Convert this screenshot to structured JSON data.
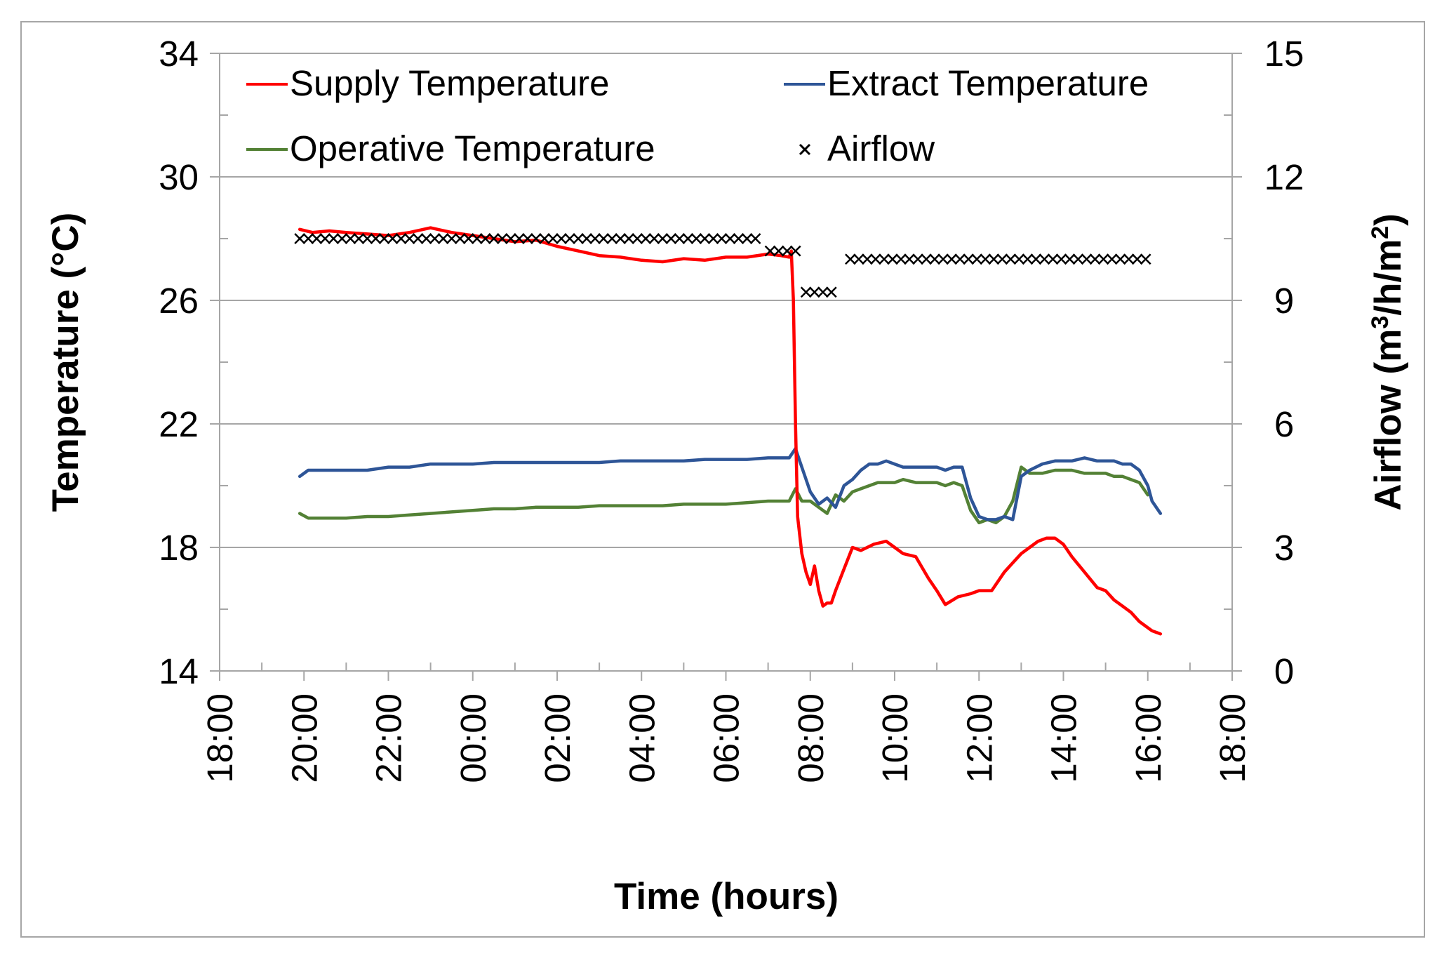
{
  "chart_data": {
    "type": "line",
    "title": "",
    "xlabel": "Time (hours)",
    "ylabel": "Temperature (°C)",
    "y2label_base": "Airflow (m",
    "y2label_sup1": "3",
    "y2label_mid": "/h/m",
    "y2label_sup2": "2",
    "y2label_end": ")",
    "xlim_hours": [
      0,
      24
    ],
    "ylim": [
      14,
      34
    ],
    "y2lim": [
      0,
      15
    ],
    "x_tick_labels": [
      "18:00",
      "20:00",
      "22:00",
      "00:00",
      "02:00",
      "04:00",
      "06:00",
      "08:00",
      "10:00",
      "12:00",
      "14:00",
      "16:00",
      "18:00"
    ],
    "y_ticks": [
      14,
      18,
      22,
      26,
      30,
      34
    ],
    "y2_ticks": [
      0,
      3,
      6,
      9,
      12,
      15
    ],
    "legend_placement": "top",
    "colors": {
      "supply": "#ff0000",
      "extract": "#2e5597",
      "operative": "#538135",
      "airflow": "#000000",
      "grid": "#a6a6a6"
    },
    "series": [
      {
        "name": "Supply Temperature",
        "axis": "left",
        "style": "line",
        "x": [
          1.9,
          2.2,
          2.6,
          3.0,
          3.5,
          4.0,
          4.5,
          5.0,
          5.5,
          6.0,
          6.5,
          7.0,
          7.5,
          8.0,
          8.5,
          9.0,
          9.5,
          10.0,
          10.5,
          11.0,
          11.5,
          12.0,
          12.5,
          13.0,
          13.3,
          13.5,
          13.55,
          13.6,
          13.65,
          13.7,
          13.8,
          13.9,
          14.0,
          14.1,
          14.2,
          14.3,
          14.4,
          14.5,
          14.6,
          14.8,
          15.0,
          15.2,
          15.5,
          15.8,
          16.0,
          16.2,
          16.5,
          16.8,
          17.0,
          17.2,
          17.5,
          17.8,
          18.0,
          18.3,
          18.6,
          18.8,
          19.0,
          19.2,
          19.4,
          19.6,
          19.8,
          20.0,
          20.2,
          20.5,
          20.8,
          21.0,
          21.2,
          21.4,
          21.6,
          21.8,
          22.0,
          22.1,
          22.2,
          22.3
        ],
        "values": [
          28.3,
          28.2,
          28.25,
          28.2,
          28.15,
          28.1,
          28.2,
          28.35,
          28.2,
          28.1,
          28.0,
          27.9,
          27.95,
          27.75,
          27.6,
          27.45,
          27.4,
          27.3,
          27.25,
          27.35,
          27.3,
          27.4,
          27.4,
          27.5,
          27.45,
          27.4,
          27.6,
          26.0,
          22.0,
          19.0,
          17.8,
          17.2,
          16.8,
          17.4,
          16.6,
          16.1,
          16.2,
          16.2,
          16.6,
          17.3,
          18.0,
          17.9,
          18.1,
          18.2,
          18.0,
          17.8,
          17.7,
          17.0,
          16.6,
          16.15,
          16.4,
          16.5,
          16.6,
          16.6,
          17.2,
          17.5,
          17.8,
          18.0,
          18.2,
          18.3,
          18.3,
          18.1,
          17.7,
          17.2,
          16.7,
          16.6,
          16.3,
          16.1,
          15.9,
          15.6,
          15.4,
          15.3,
          15.25,
          15.2
        ]
      },
      {
        "name": "Extract Temperature",
        "axis": "left",
        "style": "line",
        "x": [
          1.9,
          2.1,
          2.5,
          3.0,
          3.5,
          4.0,
          4.5,
          5.0,
          5.5,
          6.0,
          6.5,
          7.0,
          7.5,
          8.0,
          8.5,
          9.0,
          9.5,
          10.0,
          10.5,
          11.0,
          11.5,
          12.0,
          12.5,
          13.0,
          13.3,
          13.5,
          13.65,
          13.8,
          14.0,
          14.2,
          14.4,
          14.6,
          14.8,
          15.0,
          15.2,
          15.4,
          15.6,
          15.8,
          16.0,
          16.2,
          16.5,
          16.8,
          17.0,
          17.2,
          17.4,
          17.6,
          17.8,
          18.0,
          18.2,
          18.4,
          18.6,
          18.8,
          19.0,
          19.2,
          19.5,
          19.8,
          20.0,
          20.2,
          20.5,
          20.8,
          21.0,
          21.2,
          21.4,
          21.6,
          21.8,
          22.0,
          22.1,
          22.3
        ],
        "values": [
          20.3,
          20.5,
          20.5,
          20.5,
          20.5,
          20.6,
          20.6,
          20.7,
          20.7,
          20.7,
          20.75,
          20.75,
          20.75,
          20.75,
          20.75,
          20.75,
          20.8,
          20.8,
          20.8,
          20.8,
          20.85,
          20.85,
          20.85,
          20.9,
          20.9,
          20.9,
          21.2,
          20.6,
          19.8,
          19.4,
          19.6,
          19.3,
          20.0,
          20.2,
          20.5,
          20.7,
          20.7,
          20.8,
          20.7,
          20.6,
          20.6,
          20.6,
          20.6,
          20.5,
          20.6,
          20.6,
          19.6,
          19.0,
          18.9,
          18.9,
          19.0,
          18.9,
          20.3,
          20.5,
          20.7,
          20.8,
          20.8,
          20.8,
          20.9,
          20.8,
          20.8,
          20.8,
          20.7,
          20.7,
          20.5,
          20.0,
          19.5,
          19.1
        ]
      },
      {
        "name": "Operative Temperature",
        "axis": "left",
        "style": "line",
        "x": [
          1.9,
          2.1,
          2.5,
          3.0,
          3.5,
          4.0,
          4.5,
          5.0,
          5.5,
          6.0,
          6.5,
          7.0,
          7.5,
          8.0,
          8.5,
          9.0,
          9.5,
          10.0,
          10.5,
          11.0,
          11.5,
          12.0,
          12.5,
          13.0,
          13.3,
          13.5,
          13.65,
          13.8,
          14.0,
          14.2,
          14.4,
          14.6,
          14.8,
          15.0,
          15.2,
          15.4,
          15.6,
          15.8,
          16.0,
          16.2,
          16.5,
          16.8,
          17.0,
          17.2,
          17.4,
          17.6,
          17.8,
          18.0,
          18.2,
          18.4,
          18.6,
          18.8,
          19.0,
          19.2,
          19.5,
          19.8,
          20.0,
          20.2,
          20.5,
          20.8,
          21.0,
          21.2,
          21.4,
          21.6,
          21.8,
          22.0
        ],
        "values": [
          19.1,
          18.95,
          18.95,
          18.95,
          19.0,
          19.0,
          19.05,
          19.1,
          19.15,
          19.2,
          19.25,
          19.25,
          19.3,
          19.3,
          19.3,
          19.35,
          19.35,
          19.35,
          19.35,
          19.4,
          19.4,
          19.4,
          19.45,
          19.5,
          19.5,
          19.5,
          19.9,
          19.5,
          19.5,
          19.3,
          19.1,
          19.7,
          19.5,
          19.8,
          19.9,
          20.0,
          20.1,
          20.1,
          20.1,
          20.2,
          20.1,
          20.1,
          20.1,
          20.0,
          20.1,
          20.0,
          19.2,
          18.8,
          18.9,
          18.8,
          19.0,
          19.5,
          20.6,
          20.4,
          20.4,
          20.5,
          20.5,
          20.5,
          20.4,
          20.4,
          20.4,
          20.3,
          20.3,
          20.2,
          20.1,
          19.7
        ]
      },
      {
        "name": "Airflow",
        "axis": "right",
        "style": "markers",
        "segments": [
          {
            "x_start": 1.9,
            "x_end": 12.75,
            "value": 10.5
          },
          {
            "x_start": 13.05,
            "x_end": 13.65,
            "value": 10.2
          },
          {
            "x_start": 13.9,
            "x_end": 14.55,
            "value": 9.2
          },
          {
            "x_start": 14.95,
            "x_end": 22.0,
            "value": 10.0
          }
        ],
        "marker_step_hours": 0.2
      }
    ]
  }
}
